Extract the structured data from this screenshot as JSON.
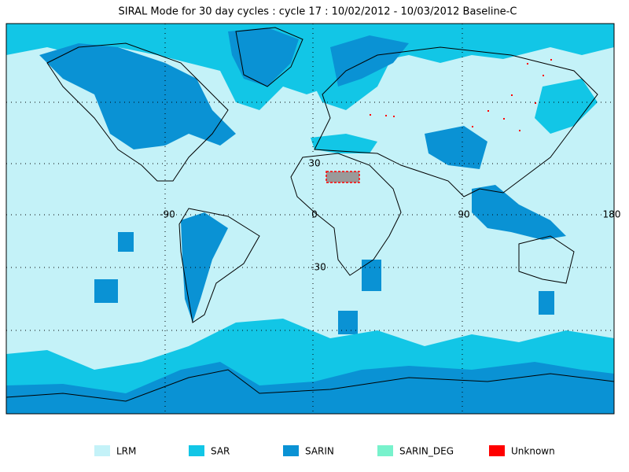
{
  "title": "SIRAL Mode for 30 day cycles : cycle 17 : 10/02/2012 - 10/03/2012 Baseline-C",
  "graticule_labels": [
    "30",
    "-90",
    "0",
    "90",
    "180",
    "-30"
  ],
  "legend": [
    {
      "label": "LRM",
      "color": "#c4f2f8"
    },
    {
      "label": "SAR",
      "color": "#12c6e6"
    },
    {
      "label": "SARIN",
      "color": "#0a92d4"
    },
    {
      "label": "SARIN_DEG",
      "color": "#78f2cc"
    },
    {
      "label": "Unknown",
      "color": "#ff0000"
    }
  ]
}
